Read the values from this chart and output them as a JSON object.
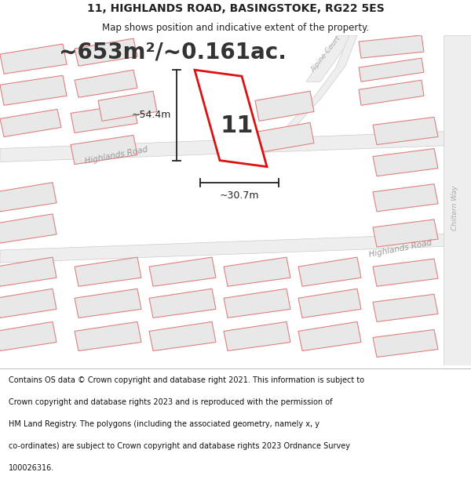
{
  "title_line1": "11, HIGHLANDS ROAD, BASINGSTOKE, RG22 5ES",
  "title_line2": "Map shows position and indicative extent of the property.",
  "area_text": "~653m²/~0.161ac.",
  "property_number": "11",
  "dim_width": "~30.7m",
  "dim_height": "~54.4m",
  "footer_lines": [
    "Contains OS data © Crown copyright and database right 2021. This information is subject to Crown copyright and database rights 2023 and is reproduced with the permission of",
    "HM Land Registry. The polygons (including the associated geometry, namely x, y",
    "co-ordinates) are subject to Crown copyright and database rights 2023 Ordnance Survey",
    "100026316."
  ],
  "bg_color": "#ffffff",
  "map_bg": "#f7f7f7",
  "building_fill": "#e8e8e8",
  "building_stroke": "#e08080",
  "road_fill": "#eeeeee",
  "road_stroke": "#cccccc",
  "property_fill": "#ffffff",
  "property_stroke": "#dd1111",
  "road_label_highland": "Highlands Road",
  "road_label_alpine": "Alpine Court",
  "road_label_chiltern": "Chiltern Way",
  "dim_color": "#222222",
  "text_color": "#222222",
  "header_title_size": 10,
  "header_sub_size": 8.5,
  "area_text_size": 20,
  "prop_num_size": 22,
  "dim_text_size": 9,
  "road_label_size": 7.5,
  "footer_size": 7
}
